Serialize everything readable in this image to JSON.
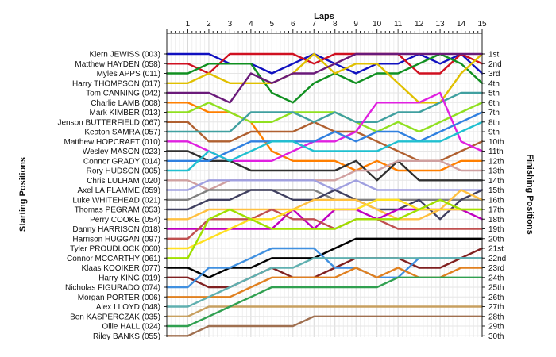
{
  "chart_data": {
    "type": "line",
    "title": "",
    "xlabel": "Laps",
    "ylabel_left": "Starting Positions",
    "ylabel_right": "Finishing Positions",
    "x_ticks": [
      1,
      2,
      3,
      4,
      5,
      6,
      7,
      8,
      9,
      10,
      11,
      12,
      13,
      14,
      15
    ],
    "xlim": [
      0,
      15
    ],
    "ylim": [
      1,
      30
    ],
    "y_inverted": true,
    "grid": true,
    "starting_labels": [
      "Kiern JEWISS (003)",
      "Matthew HAYDEN (058)",
      "Myles APPS (011)",
      "Harry THOMPSON (017)",
      "Tom CANNING (042)",
      "Charlie LAMB (008)",
      "Mark KIMBER (013)",
      "Jenson BUTTERFIELD (067)",
      "Keaton SAMRA (057)",
      "Matthew HOPCRAFT (010)",
      "Wesley MASON (023)",
      "Connor GRADY (014)",
      "Rory HUDSON (005)",
      "Chris LULHAM (020)",
      "Axel LA FLAMME (059)",
      "Luke WHITEHEAD (021)",
      "Thomas PEGRAM (053)",
      "Perry COOKE (054)",
      "Danny HARRISON (018)",
      "Harrison HUGGAN (097)",
      "Tyler PROUDLOCK (060)",
      "Connor MCCARTHY (061)",
      "Klaas KOOIKER (077)",
      "Harry KING (019)",
      "Nicholas FIGURADO (074)",
      "Morgan PORTER (006)",
      "Alex LLOYD (048)",
      "Ben KASPERCZAK (035)",
      "Ollie HALL (024)",
      "Riley BANKS (055)"
    ],
    "finishing_labels": [
      "1st",
      "2nd",
      "3rd",
      "4th",
      "5th",
      "6th",
      "7th",
      "8th",
      "9th",
      "10th",
      "11th",
      "12th",
      "13th",
      "14th",
      "15th",
      "16th",
      "17th",
      "18th",
      "19th",
      "20th",
      "21st",
      "22nd",
      "23rd",
      "24th",
      "25th",
      "26th",
      "27th",
      "28th",
      "29th",
      "30th"
    ],
    "series": [
      {
        "color": "#1010c0",
        "positions": [
          1,
          1,
          2,
          2,
          3,
          2,
          1,
          2,
          3,
          2,
          2,
          1,
          2,
          1,
          3
        ]
      },
      {
        "color": "#d01020",
        "positions": [
          2,
          3,
          1,
          1,
          1,
          1,
          2,
          1,
          1,
          1,
          1,
          3,
          3,
          1,
          2
        ]
      },
      {
        "color": "#109020",
        "positions": [
          3,
          2,
          2,
          2,
          5,
          6,
          4,
          3,
          4,
          3,
          3,
          2,
          1,
          2,
          4
        ]
      },
      {
        "color": "#e0c000",
        "positions": [
          4,
          3,
          4,
          4,
          4,
          3,
          1,
          3,
          2,
          2,
          4,
          6,
          6,
          3,
          1
        ]
      },
      {
        "color": "#6a1a7a",
        "positions": [
          5,
          5,
          6,
          3,
          4,
          3,
          3,
          2,
          1,
          1,
          1,
          1,
          1,
          1,
          1
        ]
      },
      {
        "color": "#ff7f00",
        "positions": [
          6,
          7,
          7,
          8,
          11,
          12,
          12,
          12,
          13,
          12,
          13,
          13,
          13,
          12,
          12
        ]
      },
      {
        "color": "#90e020",
        "positions": [
          7,
          6,
          7,
          8,
          8,
          7,
          7,
          7,
          8,
          9,
          8,
          9,
          8,
          7,
          6
        ]
      },
      {
        "color": "#b06030",
        "positions": [
          8,
          10,
          10,
          9,
          9,
          9,
          8,
          9,
          9,
          10,
          11,
          12,
          12,
          11,
          10
        ]
      },
      {
        "color": "#40a0a0",
        "positions": [
          9,
          9,
          9,
          7,
          7,
          7,
          8,
          7,
          8,
          8,
          7,
          7,
          6,
          5,
          5
        ]
      },
      {
        "color": "#e020e0",
        "positions": [
          10,
          11,
          12,
          12,
          12,
          11,
          10,
          10,
          9,
          6,
          6,
          6,
          5,
          10,
          11
        ]
      },
      {
        "color": "#303030",
        "positions": [
          11,
          12,
          12,
          13,
          13,
          13,
          13,
          13,
          12,
          14,
          12,
          14,
          14,
          14,
          14
        ]
      },
      {
        "color": "#3080e0",
        "positions": [
          12,
          12,
          11,
          10,
          10,
          10,
          10,
          9,
          10,
          9,
          9,
          10,
          9,
          8,
          7
        ]
      },
      {
        "color": "#20c0d0",
        "positions": [
          13,
          11,
          12,
          11,
          10,
          10,
          11,
          11,
          11,
          11,
          10,
          10,
          10,
          9,
          8
        ]
      },
      {
        "color": "#d0a0a0",
        "positions": [
          14,
          15,
          14,
          14,
          14,
          14,
          14,
          14,
          13,
          13,
          12,
          12,
          12,
          13,
          13
        ]
      },
      {
        "color": "#a0a0e0",
        "positions": [
          15,
          14,
          14,
          14,
          14,
          14,
          14,
          15,
          14,
          15,
          15,
          15,
          15,
          15,
          15
        ]
      },
      {
        "color": "#808080",
        "positions": [
          16,
          15,
          15,
          15,
          15,
          15,
          15,
          16,
          16,
          16,
          16,
          16,
          16,
          16,
          16
        ]
      },
      {
        "color": "#404060",
        "positions": [
          17,
          16,
          16,
          15,
          15,
          16,
          16,
          15,
          16,
          17,
          17,
          16,
          18,
          16,
          15
        ]
      },
      {
        "color": "#ffc040",
        "positions": [
          18,
          17,
          17,
          17,
          17,
          17,
          16,
          16,
          16,
          17,
          18,
          18,
          17,
          15,
          16
        ]
      },
      {
        "color": "#c000c0",
        "positions": [
          19,
          19,
          19,
          19,
          19,
          17,
          19,
          17,
          17,
          18,
          17,
          17,
          17,
          17,
          18
        ]
      },
      {
        "color": "#c05050",
        "positions": [
          20,
          18,
          18,
          18,
          17,
          18,
          18,
          19,
          18,
          18,
          19,
          19,
          19,
          19,
          19
        ]
      },
      {
        "color": "#ffe020",
        "positions": [
          21,
          20,
          19,
          18,
          18,
          17,
          17,
          17,
          17,
          16,
          16,
          17,
          17,
          17,
          17
        ]
      },
      {
        "color": "#a0e000",
        "positions": [
          22,
          18,
          17,
          18,
          19,
          19,
          19,
          19,
          18,
          18,
          18,
          17,
          16,
          17,
          17
        ]
      },
      {
        "color": "#000000",
        "positions": [
          23,
          24,
          23,
          23,
          22,
          22,
          22,
          21,
          20,
          20,
          20,
          20,
          20,
          20,
          20
        ]
      },
      {
        "color": "#802020",
        "positions": [
          24,
          25,
          25,
          24,
          23,
          24,
          24,
          23,
          22,
          22,
          22,
          23,
          23,
          22,
          21
        ]
      },
      {
        "color": "#4090e0",
        "positions": [
          25,
          23,
          23,
          22,
          21,
          21,
          21,
          23,
          23,
          24,
          24,
          22,
          22,
          22,
          22
        ]
      },
      {
        "color": "#e08020",
        "positions": [
          26,
          26,
          26,
          25,
          24,
          24,
          24,
          24,
          23,
          24,
          23,
          24,
          24,
          23,
          23
        ]
      },
      {
        "color": "#60b0b0",
        "positions": [
          27,
          26,
          25,
          24,
          23,
          23,
          22,
          22,
          22,
          22,
          22,
          22,
          22,
          22,
          22
        ]
      },
      {
        "color": "#c8a060",
        "positions": [
          28,
          27,
          27,
          27,
          27,
          27,
          27,
          27,
          27,
          27,
          27,
          27,
          27,
          27,
          27
        ]
      },
      {
        "color": "#30a050",
        "positions": [
          29,
          28,
          27,
          26,
          25,
          25,
          25,
          25,
          25,
          25,
          24,
          24,
          24,
          24,
          24
        ]
      },
      {
        "color": "#a07050",
        "positions": [
          30,
          29,
          29,
          29,
          29,
          29,
          28,
          28,
          28,
          28,
          28,
          28,
          28,
          28,
          28
        ]
      }
    ]
  }
}
